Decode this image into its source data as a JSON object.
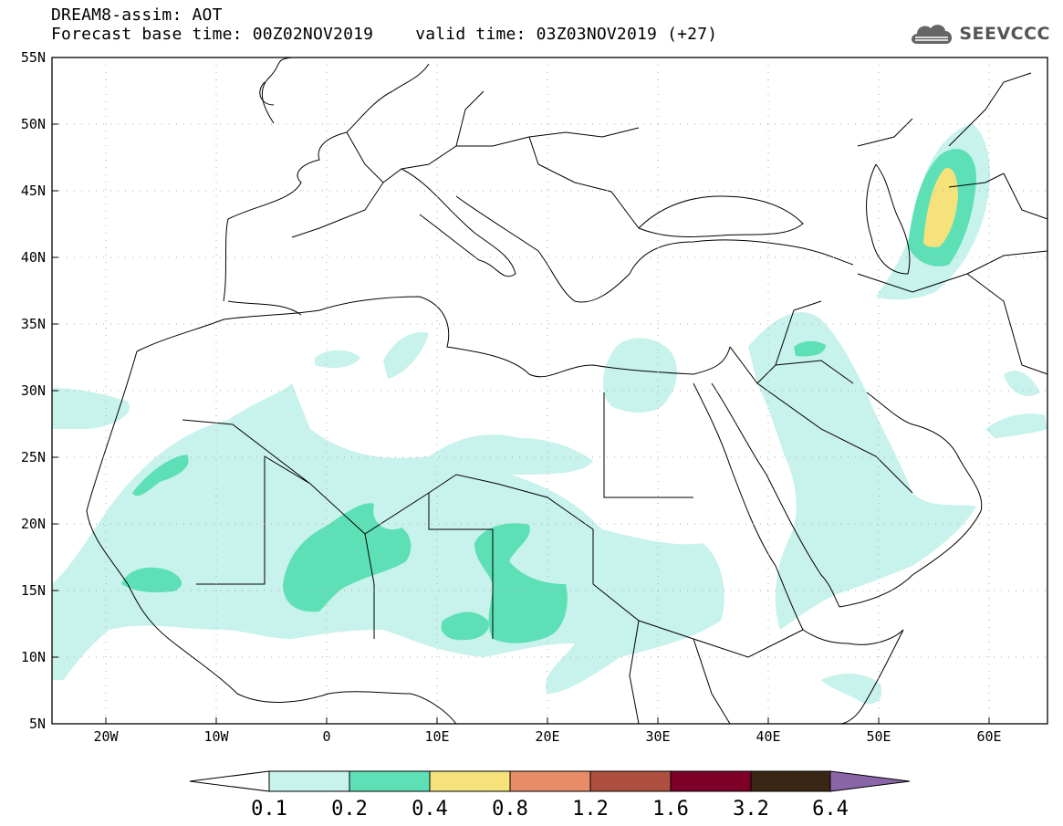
{
  "header": {
    "title": "DREAM8-assim: AOT",
    "base_time": "Forecast base time: 00Z02NOV2019",
    "valid_time": "valid time: 03Z03NOV2019 (+27)"
  },
  "logo": {
    "text": "SEEVCCC",
    "icon": "cloud-icon"
  },
  "axes": {
    "lat_labels": [
      "55N",
      "50N",
      "45N",
      "40N",
      "35N",
      "30N",
      "25N",
      "20N",
      "15N",
      "10N",
      "5N"
    ],
    "lon_labels": [
      "20W",
      "10W",
      "0",
      "10E",
      "20E",
      "30E",
      "40E",
      "50E",
      "60E"
    ]
  },
  "colorbar": {
    "labels": [
      "0.1",
      "0.2",
      "0.4",
      "0.8",
      "1.2",
      "1.6",
      "3.2",
      "6.4"
    ],
    "colors": [
      "#ffffff",
      "#c8f2ec",
      "#5ee0b6",
      "#f5e27a",
      "#e88c68",
      "#ad5040",
      "#7e0028",
      "#3a2614",
      "#8a66a8"
    ]
  },
  "colors": {
    "level_01": "#c8f2ec",
    "level_02": "#5ee0b6",
    "level_04": "#f5e27a",
    "border": "#000000"
  }
}
